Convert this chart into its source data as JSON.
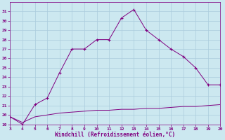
{
  "xlabel": "Windchill (Refroidissement éolien,°C)",
  "x_main": [
    3,
    4,
    5,
    6,
    7,
    8,
    9,
    10,
    11,
    12,
    13,
    14,
    15,
    16,
    17,
    18,
    19,
    20
  ],
  "y_main": [
    19.8,
    19.0,
    21.1,
    21.8,
    24.5,
    27.0,
    27.0,
    28.0,
    28.0,
    30.3,
    31.2,
    29.0,
    28.0,
    27.0,
    26.2,
    25.0,
    23.2,
    23.2
  ],
  "x_flat": [
    3,
    4,
    5,
    6,
    7,
    8,
    9,
    10,
    11,
    12,
    13,
    14,
    15,
    16,
    17,
    18,
    19,
    20
  ],
  "y_flat": [
    19.8,
    19.2,
    19.8,
    20.0,
    20.2,
    20.3,
    20.4,
    20.5,
    20.5,
    20.6,
    20.6,
    20.7,
    20.7,
    20.8,
    20.9,
    20.9,
    21.0,
    21.1
  ],
  "line_color": "#800080",
  "bg_color": "#cce8f0",
  "grid_color": "#aaccdd",
  "text_color": "#800080",
  "xlim": [
    3,
    20
  ],
  "ylim": [
    19,
    32
  ],
  "xticks": [
    3,
    4,
    5,
    6,
    7,
    8,
    9,
    10,
    11,
    12,
    13,
    14,
    15,
    16,
    17,
    18,
    19,
    20
  ],
  "yticks": [
    19,
    20,
    21,
    22,
    23,
    24,
    25,
    26,
    27,
    28,
    29,
    30,
    31
  ],
  "marker": "+"
}
